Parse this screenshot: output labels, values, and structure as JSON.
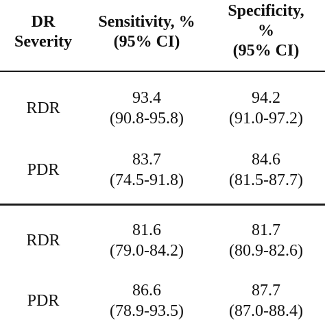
{
  "header": {
    "col1": [
      "DR",
      "Severity"
    ],
    "col2": [
      "Sensitivity, %",
      "(95% CI)"
    ],
    "col3": [
      "Specificity,",
      "%",
      "(95% CI)"
    ]
  },
  "rows": [
    {
      "severity": "RDR",
      "sensitivity": "93.4",
      "sensitivity_ci": "(90.8-95.8)",
      "specificity": "94.2",
      "specificity_ci": "(91.0-97.2)"
    },
    {
      "severity": "PDR",
      "sensitivity": "83.7",
      "sensitivity_ci": "(74.5-91.8)",
      "specificity": "84.6",
      "specificity_ci": "(81.5-87.7)"
    },
    {
      "severity": "RDR",
      "sensitivity": "81.6",
      "sensitivity_ci": "(79.0-84.2)",
      "specificity": "81.7",
      "specificity_ci": "(80.9-82.6)"
    },
    {
      "severity": "PDR",
      "sensitivity": "86.6",
      "sensitivity_ci": "(78.9-93.5)",
      "specificity": "87.7",
      "specificity_ci": "(87.0-88.4)"
    }
  ]
}
